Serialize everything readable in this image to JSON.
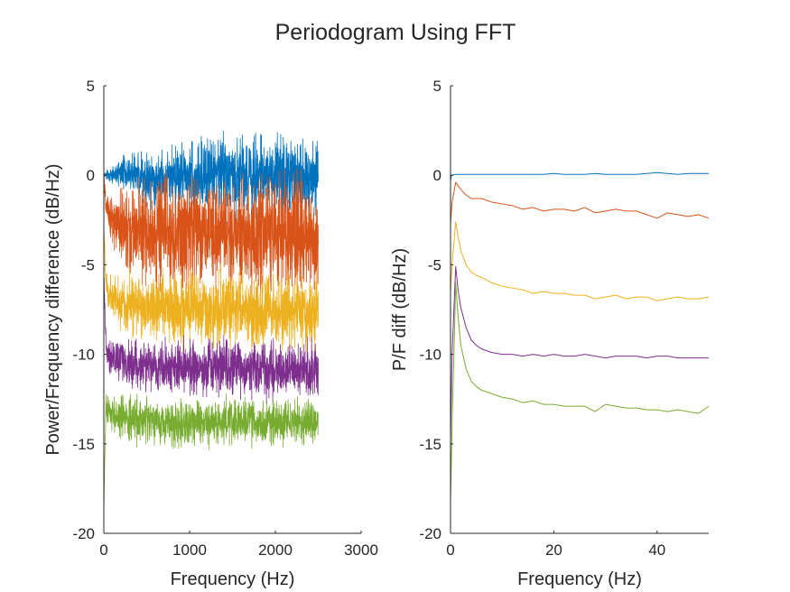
{
  "figure": {
    "title": "Periodogram Using FFT"
  },
  "chart_data": [
    {
      "type": "line",
      "xlabel": "Frequency (Hz)",
      "ylabel": "Power/Frequency difference (dB/Hz)",
      "xlim": [
        0,
        3000
      ],
      "ylim": [
        -20,
        5
      ],
      "xticks": [
        "0",
        "1000",
        "2000",
        "3000"
      ],
      "yticks": [
        "-20",
        "-15",
        "-10",
        "-5",
        "0",
        "5"
      ],
      "grid": false,
      "series": [
        {
          "color": "#0072BD",
          "x": [
            0,
            25,
            50,
            100,
            200,
            300,
            400,
            500,
            600,
            700,
            800,
            900,
            1000,
            1200,
            1400,
            1600,
            1800,
            2000,
            2200,
            2400,
            2500
          ],
          "y": [
            0.0,
            0.0,
            0.0,
            0.05,
            0.1,
            0.1,
            0.0,
            -0.2,
            -0.3,
            -0.25,
            -0.2,
            -0.1,
            0.0,
            0.05,
            0.1,
            0.0,
            -0.05,
            0.0,
            0.05,
            -0.05,
            0.0
          ],
          "spread": [
            0.05,
            0.1,
            0.15,
            0.2,
            0.3,
            0.45,
            0.55,
            0.6,
            0.6,
            0.6,
            0.65,
            0.7,
            0.75,
            0.8,
            0.85,
            0.85,
            0.85,
            0.85,
            0.85,
            0.85,
            0.85
          ]
        },
        {
          "color": "#D95319",
          "x": [
            0,
            25,
            50,
            100,
            200,
            300,
            400,
            500,
            600,
            700,
            800,
            900,
            1000,
            1200,
            1400,
            1600,
            1800,
            2000,
            2200,
            2400,
            2500
          ],
          "y": [
            -0.3,
            -1.5,
            -2.1,
            -2.5,
            -2.8,
            -3.0,
            -3.1,
            -3.1,
            -3.2,
            -3.2,
            -3.2,
            -3.2,
            -3.1,
            -3.2,
            -3.3,
            -3.3,
            -3.3,
            -3.3,
            -3.3,
            -3.4,
            -3.4
          ],
          "spread": [
            0.2,
            0.3,
            0.4,
            0.6,
            0.8,
            1.0,
            1.1,
            1.2,
            1.2,
            1.2,
            1.2,
            1.2,
            1.3,
            1.3,
            1.3,
            1.3,
            1.3,
            1.3,
            1.3,
            1.3,
            1.3
          ]
        },
        {
          "color": "#EDB120",
          "x": [
            0,
            25,
            50,
            100,
            200,
            300,
            400,
            500,
            600,
            700,
            800,
            900,
            1000,
            1200,
            1400,
            1600,
            1800,
            2000,
            2200,
            2400,
            2500
          ],
          "y": [
            -3.0,
            -6.0,
            -6.6,
            -6.9,
            -7.1,
            -7.2,
            -7.3,
            -7.3,
            -7.4,
            -7.4,
            -7.4,
            -7.5,
            -7.5,
            -7.5,
            -7.5,
            -7.5,
            -7.6,
            -7.6,
            -7.6,
            -7.6,
            -7.6
          ],
          "spread": [
            0.2,
            0.3,
            0.4,
            0.5,
            0.6,
            0.7,
            0.7,
            0.7,
            0.75,
            0.75,
            0.75,
            0.8,
            0.8,
            0.8,
            0.8,
            0.8,
            0.8,
            0.8,
            0.8,
            0.8,
            0.8
          ]
        },
        {
          "color": "#7E2F8E",
          "x": [
            0,
            25,
            50,
            100,
            200,
            300,
            400,
            500,
            600,
            700,
            800,
            900,
            1000,
            1200,
            1400,
            1600,
            1800,
            2000,
            2200,
            2400,
            2500
          ],
          "y": [
            -5.5,
            -9.5,
            -10.0,
            -10.2,
            -10.4,
            -10.5,
            -10.6,
            -10.6,
            -10.7,
            -10.7,
            -10.7,
            -10.8,
            -10.8,
            -10.8,
            -10.8,
            -10.8,
            -10.9,
            -10.9,
            -10.9,
            -10.9,
            -10.9
          ],
          "spread": [
            0.2,
            0.3,
            0.35,
            0.4,
            0.45,
            0.5,
            0.5,
            0.55,
            0.55,
            0.55,
            0.6,
            0.6,
            0.6,
            0.6,
            0.6,
            0.6,
            0.6,
            0.6,
            0.6,
            0.6,
            0.6
          ]
        },
        {
          "color": "#77AC30",
          "x": [
            0,
            25,
            50,
            100,
            200,
            300,
            400,
            500,
            600,
            700,
            800,
            900,
            1000,
            1200,
            1400,
            1600,
            1800,
            2000,
            2200,
            2400,
            2500
          ],
          "y": [
            -18.3,
            -13.0,
            -13.2,
            -13.4,
            -13.5,
            -13.6,
            -13.7,
            -13.7,
            -13.8,
            -13.8,
            -13.8,
            -13.8,
            -13.8,
            -13.8,
            -13.8,
            -13.8,
            -13.8,
            -13.8,
            -13.8,
            -13.8,
            -13.8
          ],
          "spread": [
            0.2,
            0.3,
            0.35,
            0.4,
            0.45,
            0.5,
            0.5,
            0.5,
            0.5,
            0.5,
            0.5,
            0.5,
            0.5,
            0.5,
            0.5,
            0.5,
            0.5,
            0.5,
            0.5,
            0.5,
            0.5
          ]
        }
      ]
    },
    {
      "type": "line",
      "xlabel": "Frequency (Hz)",
      "ylabel": "P/F diff (dB/Hz)",
      "xlim": [
        0,
        50
      ],
      "ylim": [
        -20,
        5
      ],
      "xticks": [
        "0",
        "20",
        "40"
      ],
      "yticks": [
        "-20",
        "-15",
        "-10",
        "-5",
        "0",
        "5"
      ],
      "grid": false,
      "series": [
        {
          "color": "#0072BD",
          "x": [
            0,
            0.2,
            1,
            2,
            3,
            4,
            5,
            6,
            8,
            10,
            12,
            14,
            16,
            18,
            20,
            22,
            24,
            26,
            28,
            30,
            32,
            34,
            36,
            38,
            40,
            42,
            44,
            46,
            48,
            50
          ],
          "y": [
            -0.3,
            0.0,
            0.05,
            0.05,
            0.05,
            0.05,
            0.05,
            0.05,
            0.05,
            0.05,
            0.05,
            0.05,
            0.05,
            0.05,
            0.1,
            0.05,
            0.05,
            0.05,
            0.1,
            0.05,
            0.05,
            0.05,
            0.05,
            0.1,
            0.15,
            0.1,
            0.05,
            0.1,
            0.1,
            0.1
          ]
        },
        {
          "color": "#D95319",
          "x": [
            0,
            0.3,
            1,
            1.5,
            2,
            3,
            4,
            5,
            6,
            8,
            10,
            12,
            14,
            16,
            18,
            20,
            22,
            24,
            26,
            28,
            30,
            32,
            34,
            36,
            38,
            40,
            42,
            44,
            46,
            48,
            50
          ],
          "y": [
            -2.7,
            -1.5,
            -0.4,
            -0.6,
            -0.8,
            -1.1,
            -1.3,
            -1.3,
            -1.3,
            -1.5,
            -1.6,
            -1.7,
            -1.9,
            -1.8,
            -2.0,
            -1.9,
            -1.9,
            -2.0,
            -1.8,
            -2.1,
            -2.0,
            -1.9,
            -2.0,
            -2.0,
            -2.2,
            -2.4,
            -2.1,
            -2.2,
            -2.3,
            -2.2,
            -2.4
          ]
        },
        {
          "color": "#EDB120",
          "x": [
            0,
            0.3,
            1,
            1.5,
            2,
            3,
            4,
            5,
            6,
            8,
            10,
            12,
            14,
            16,
            18,
            20,
            22,
            24,
            26,
            28,
            30,
            32,
            34,
            36,
            38,
            40,
            42,
            44,
            46,
            48,
            50
          ],
          "y": [
            -6.5,
            -5.0,
            -2.6,
            -3.5,
            -4.2,
            -5.0,
            -5.4,
            -5.6,
            -5.7,
            -6.0,
            -6.2,
            -6.3,
            -6.4,
            -6.6,
            -6.5,
            -6.6,
            -6.6,
            -6.7,
            -6.7,
            -6.9,
            -6.8,
            -6.7,
            -6.9,
            -6.8,
            -6.8,
            -7.0,
            -6.9,
            -6.8,
            -6.9,
            -6.9,
            -6.8
          ]
        },
        {
          "color": "#7E2F8E",
          "x": [
            0,
            0.3,
            1,
            1.5,
            2,
            3,
            4,
            5,
            6,
            8,
            10,
            12,
            14,
            16,
            18,
            20,
            22,
            24,
            26,
            28,
            30,
            32,
            34,
            36,
            38,
            40,
            42,
            44,
            46,
            48,
            50
          ],
          "y": [
            -14.8,
            -10.0,
            -5.1,
            -6.5,
            -7.4,
            -8.5,
            -9.2,
            -9.5,
            -9.7,
            -9.9,
            -10.0,
            -10.0,
            -10.1,
            -10.0,
            -10.1,
            -10.0,
            -10.1,
            -10.1,
            -10.0,
            -10.1,
            -10.2,
            -10.1,
            -10.1,
            -10.1,
            -10.2,
            -10.1,
            -10.1,
            -10.2,
            -10.2,
            -10.2,
            -10.2
          ]
        },
        {
          "color": "#77AC30",
          "x": [
            0,
            0.3,
            1,
            1.5,
            2,
            3,
            4,
            5,
            6,
            8,
            10,
            12,
            14,
            16,
            18,
            20,
            22,
            24,
            26,
            28,
            30,
            32,
            34,
            36,
            38,
            40,
            42,
            44,
            46,
            48,
            50
          ],
          "y": [
            -18.3,
            -14.0,
            -6.0,
            -8.0,
            -9.5,
            -10.8,
            -11.5,
            -11.8,
            -12.0,
            -12.2,
            -12.4,
            -12.5,
            -12.7,
            -12.6,
            -12.8,
            -12.8,
            -12.9,
            -12.9,
            -12.9,
            -13.2,
            -12.8,
            -12.9,
            -13.0,
            -13.0,
            -13.1,
            -13.1,
            -13.2,
            -13.1,
            -13.2,
            -13.3,
            -12.9
          ]
        }
      ]
    }
  ]
}
